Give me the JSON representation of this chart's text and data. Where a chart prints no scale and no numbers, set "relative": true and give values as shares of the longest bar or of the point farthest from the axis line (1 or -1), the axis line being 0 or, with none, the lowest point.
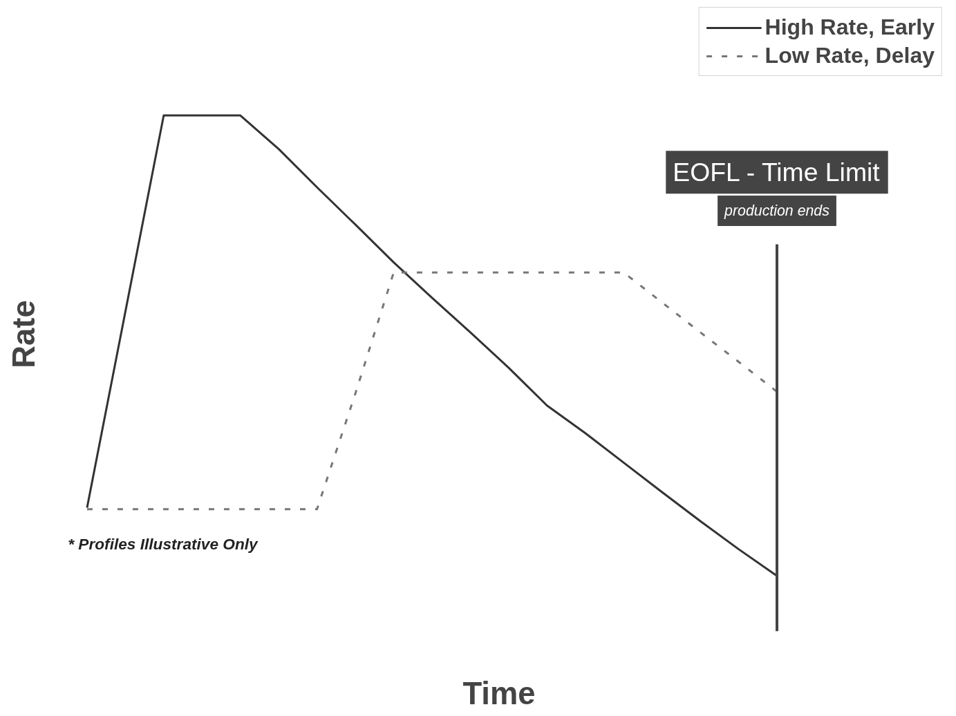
{
  "chart_data": {
    "type": "line",
    "relative": true,
    "xlabel": "Time",
    "ylabel": "Rate",
    "categories": [
      null,
      null,
      null,
      null,
      null,
      null,
      null,
      null,
      null,
      null,
      null,
      null,
      null,
      null,
      null,
      null,
      null,
      null,
      null
    ],
    "series": [
      {
        "name": "High Rate, Early",
        "color": "#333333",
        "line_style": "solid",
        "values": [
          0.148,
          0.574,
          1,
          1,
          1,
          0.927,
          0.844,
          0.763,
          0.681,
          0.604,
          0.529,
          0.452,
          0.37,
          0.31,
          0.246,
          0.182,
          0.119,
          0.058,
          0
        ]
      },
      {
        "name": "Low Rate, Delay",
        "color": "#777777",
        "line_style": "dashed",
        "values": [
          0.145,
          0.145,
          0.145,
          0.145,
          0.145,
          0.145,
          0.145,
          0.396,
          0.659,
          0.659,
          0.659,
          0.659,
          0.659,
          0.659,
          0.659,
          0.594,
          0.529,
          0.465,
          0.4
        ]
      }
    ],
    "annotations": [
      "EOFL - Time Limit",
      "production ends",
      "* Profiles Illustrative Only"
    ],
    "legend": "top right",
    "grid": false,
    "marker": "none"
  }
}
